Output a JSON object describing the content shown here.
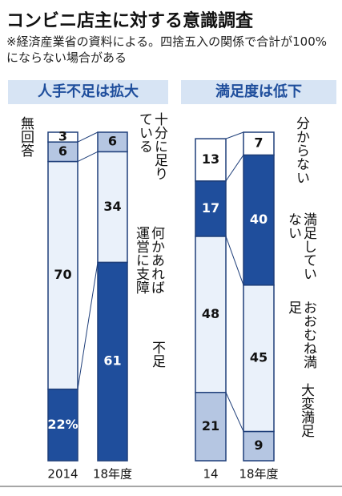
{
  "title": "コンビニ店主に対する意識調査",
  "note": "※経済産業省の資料による。四捨五入の関係で合計が100%にならない場合がある",
  "chart_data": [
    {
      "type": "bar",
      "stacked": true,
      "title": "人手不足は拡大",
      "categories": [
        "2014",
        "18年度"
      ],
      "series": [
        {
          "name": "不足",
          "color": "#1f4e9c",
          "values": [
            22,
            61
          ],
          "value_labels": [
            "22%",
            "61"
          ]
        },
        {
          "name": "何かあれば運営に支障",
          "color": "#eaf1fa",
          "values": [
            70,
            34
          ]
        },
        {
          "name": "十分に足りている",
          "color": "#b5c6e2",
          "values": [
            6,
            6
          ]
        },
        {
          "name": "無回答",
          "color": "#ffffff",
          "values": [
            3,
            null
          ]
        }
      ]
    },
    {
      "type": "bar",
      "stacked": true,
      "title": "満足度は低下",
      "categories": [
        "14",
        "18年度"
      ],
      "series": [
        {
          "name": "大変満足",
          "color": "#b5c6e2",
          "values": [
            21,
            9
          ]
        },
        {
          "name": "おおむね満足",
          "color": "#eaf1fa",
          "values": [
            48,
            45
          ]
        },
        {
          "name": "満足していない",
          "color": "#1f4e9c",
          "values": [
            17,
            40
          ]
        },
        {
          "name": "分からない",
          "color": "#ffffff",
          "values": [
            13,
            7
          ]
        }
      ]
    }
  ]
}
